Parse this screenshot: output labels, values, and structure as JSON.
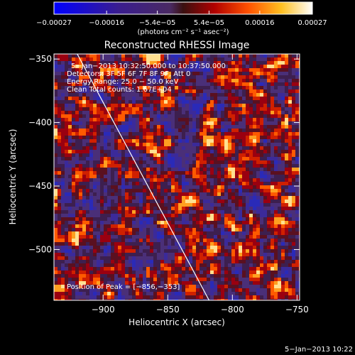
{
  "chart_data": {
    "type": "heatmap",
    "title": "Reconstructed RHESSI Image",
    "xlabel": "Heliocentric X (arcsec)",
    "ylabel": "Heliocentric Y (arcsec)",
    "xlim": [
      -938,
      -748
    ],
    "ylim": [
      -540,
      -346
    ],
    "xticks": [
      -900,
      -850,
      -800,
      -750
    ],
    "yticks": [
      -350,
      -400,
      -450,
      -500
    ],
    "xtick_labels": [
      "−900",
      "−850",
      "−800",
      "−750"
    ],
    "ytick_labels": [
      "−350",
      "−400",
      "−450",
      "−500"
    ],
    "colorbar": {
      "range": [
        -0.00027,
        0.00027
      ],
      "ticks": [
        -0.00027,
        -0.00016,
        -5.4e-05,
        5.4e-05,
        0.00016,
        0.00027
      ],
      "tick_labels": [
        "−0.00027",
        "−0.00016",
        "−5.4e−05",
        "5.4e−05",
        "0.00016",
        "0.00027"
      ],
      "units": "(photons cm⁻² s⁻¹ asec⁻²)"
    },
    "annotations": [
      "5−Jan−2013 10:32:50.000 to 10:37:50.000",
      "Detectors: 3F 5F 6F 7F 8F 9F, Att 0",
      "Energy Range: 25.0 − 50.0 keV",
      "Clean     Total counts: 1.67E+04"
    ],
    "peak_label": "Position of Peak = [−856,−353]",
    "limb_line": {
      "x": [
        -920,
        -818
      ],
      "y": [
        -346,
        -540
      ]
    },
    "grid": false,
    "legend": "none"
  },
  "footer": {
    "timestamp": "5−Jan−2013 10:22"
  },
  "colors": {
    "background": "#000000",
    "text": "#ffffff",
    "limb": "#ffffff"
  }
}
